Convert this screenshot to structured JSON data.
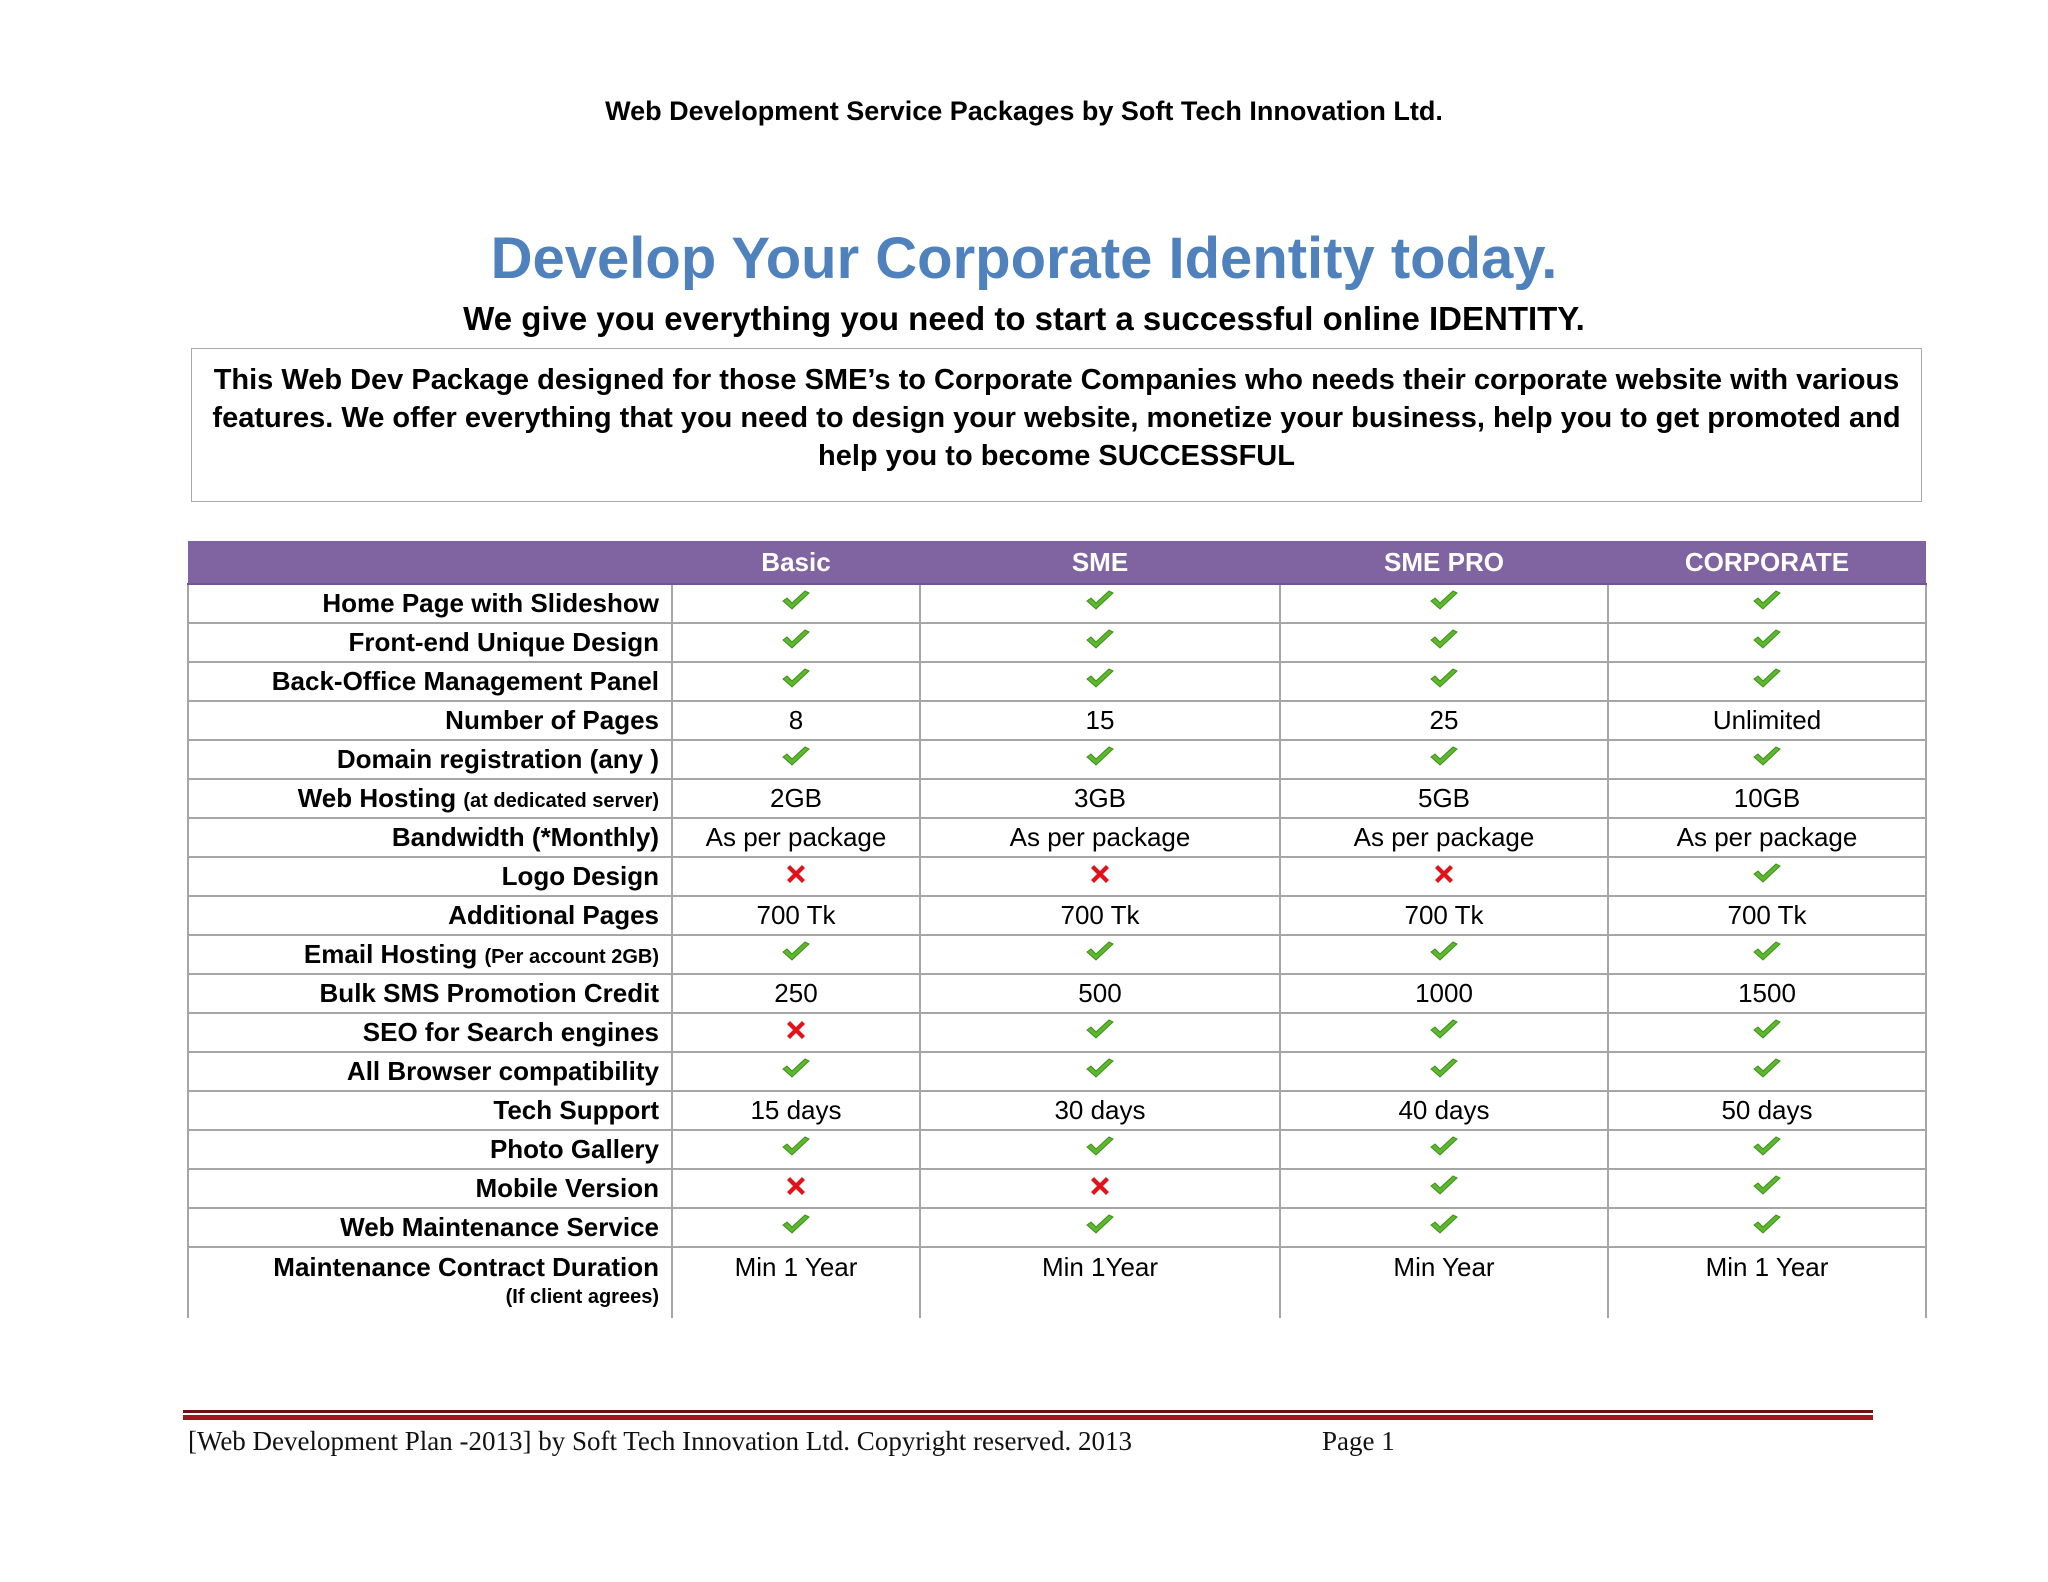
{
  "header": {
    "title": "Web Development Service Packages by Soft Tech Innovation Ltd."
  },
  "headline": "Develop Your Corporate Identity today.",
  "subheadline": "We give you everything you need to start a successful online IDENTITY.",
  "intro": "This Web Dev Package designed for those SME’s to Corporate Companies who needs their corporate website with various features. We offer everything that you need to design your website, monetize your business, help you to get promoted and help you to become SUCCESSFUL",
  "table": {
    "columns": [
      "Basic",
      "SME",
      "SME PRO",
      "CORPORATE"
    ],
    "rows": [
      {
        "feature": "Home Page with Slideshow",
        "values": [
          "check",
          "check",
          "check",
          "check"
        ]
      },
      {
        "feature": "Front-end Unique Design",
        "values": [
          "check",
          "check",
          "check",
          "check"
        ]
      },
      {
        "feature": "Back-Office Management Panel",
        "values": [
          "check",
          "check",
          "check",
          "check"
        ]
      },
      {
        "feature": "Number of Pages",
        "values": [
          "8",
          "15",
          "25",
          "Unlimited"
        ]
      },
      {
        "feature": "Domain registration (any )",
        "values": [
          "check",
          "check",
          "check",
          "check"
        ]
      },
      {
        "feature": "Web Hosting",
        "feature_sub": "(at dedicated server)",
        "values": [
          "2GB",
          "3GB",
          "5GB",
          "10GB"
        ]
      },
      {
        "feature": "Bandwidth (*Monthly)",
        "values": [
          "As per package",
          "As per package",
          "As per package",
          "As per package"
        ]
      },
      {
        "feature": "Logo Design",
        "values": [
          "cross",
          "cross",
          "cross",
          "check"
        ]
      },
      {
        "feature": "Additional Pages",
        "values": [
          "700 Tk",
          "700 Tk",
          "700 Tk",
          "700 Tk"
        ]
      },
      {
        "feature": "Email Hosting",
        "feature_sub": "(Per account 2GB)",
        "values": [
          "check",
          "check",
          "check",
          "check"
        ]
      },
      {
        "feature": "Bulk SMS Promotion  Credit",
        "values": [
          "250",
          "500",
          "1000",
          "1500"
        ]
      },
      {
        "feature": "SEO for Search engines",
        "values": [
          "cross",
          "check",
          "check",
          "check"
        ]
      },
      {
        "feature": "All Browser compatibility",
        "values": [
          "check",
          "check",
          "check",
          "check"
        ]
      },
      {
        "feature": "Tech Support",
        "values": [
          "15 days",
          "30 days",
          "40 days",
          "50 days"
        ]
      },
      {
        "feature": "Photo Gallery",
        "values": [
          "check",
          "check",
          "check",
          "check"
        ]
      },
      {
        "feature": "Mobile Version",
        "values": [
          "cross",
          "cross",
          "check",
          "check"
        ]
      },
      {
        "feature": "Web Maintenance Service",
        "values": [
          "check",
          "check",
          "check",
          "check"
        ]
      },
      {
        "feature": "Maintenance Contract Duration",
        "feature_note": "(If client agrees)",
        "values": [
          "Min 1 Year",
          "Min 1Year",
          "Min Year",
          "Min 1 Year"
        ]
      }
    ]
  },
  "icons": {
    "check": "checkmark-icon",
    "cross": "cross-icon"
  },
  "colors": {
    "headline": "#4f81bd",
    "table_header": "#8064a2",
    "check": "#5cb82c",
    "cross": "#e3121a",
    "footer_rule": "#a0171b"
  },
  "footer": {
    "text": "[Web Development Plan -2013] by Soft Tech Innovation Ltd. Copyright reserved. 2013",
    "page": "Page 1"
  }
}
